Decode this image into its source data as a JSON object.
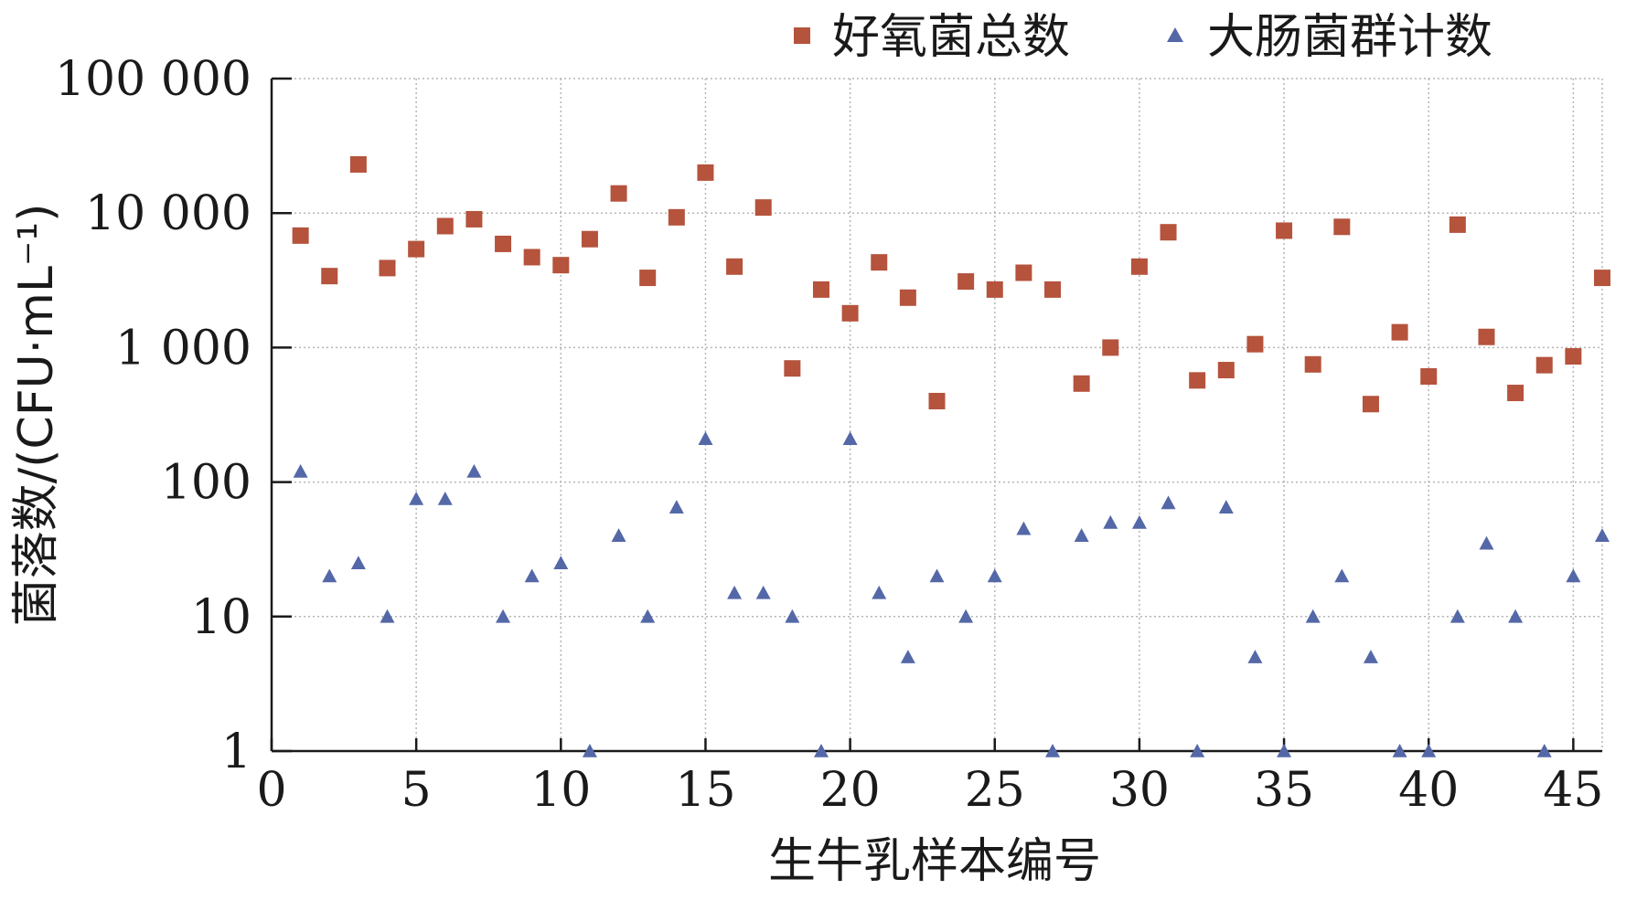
{
  "chart_data": {
    "type": "scatter",
    "title": "",
    "xlabel": "生牛乳样本编号",
    "ylabel": "菌落数/(CFU·mL⁻¹)",
    "xlim": [
      0,
      46
    ],
    "ylim": [
      1,
      100000
    ],
    "yscale": "log",
    "grid": true,
    "legend_position": "top-right",
    "x_ticks": [
      {
        "value": 0,
        "label": "0"
      },
      {
        "value": 5,
        "label": "5"
      },
      {
        "value": 10,
        "label": "10"
      },
      {
        "value": 15,
        "label": "15"
      },
      {
        "value": 20,
        "label": "20"
      },
      {
        "value": 25,
        "label": "25"
      },
      {
        "value": 30,
        "label": "30"
      },
      {
        "value": 35,
        "label": "35"
      },
      {
        "value": 40,
        "label": "40"
      },
      {
        "value": 45,
        "label": "45"
      }
    ],
    "y_ticks": [
      {
        "value": 1,
        "label": "1"
      },
      {
        "value": 10,
        "label": "10"
      },
      {
        "value": 100,
        "label": "100"
      },
      {
        "value": 1000,
        "label": "1 000"
      },
      {
        "value": 10000,
        "label": "10 000"
      },
      {
        "value": 100000,
        "label": "100 000"
      }
    ],
    "series": [
      {
        "name": "好氧菌总数",
        "marker": "square",
        "color": "#B5533C",
        "x": [
          1,
          2,
          3,
          4,
          5,
          6,
          7,
          8,
          9,
          10,
          11,
          12,
          13,
          14,
          15,
          16,
          17,
          18,
          19,
          20,
          21,
          22,
          23,
          24,
          25,
          26,
          27,
          28,
          29,
          30,
          31,
          32,
          33,
          34,
          35,
          36,
          37,
          38,
          39,
          40,
          41,
          42,
          43,
          44,
          45,
          46
        ],
        "y": [
          6800,
          3400,
          23000,
          3900,
          5400,
          8000,
          9000,
          5900,
          4700,
          4100,
          6400,
          14000,
          3300,
          9300,
          20000,
          4000,
          11000,
          700,
          2700,
          1800,
          4300,
          2350,
          400,
          3100,
          2700,
          3600,
          2700,
          540,
          1000,
          4000,
          7200,
          570,
          680,
          1060,
          7400,
          750,
          7900,
          380,
          1300,
          610,
          8200,
          1200,
          460,
          740,
          860,
          3300
        ]
      },
      {
        "name": "大肠菌群计数",
        "marker": "triangle",
        "color": "#5468A8",
        "x": [
          1,
          2,
          3,
          4,
          5,
          6,
          7,
          8,
          9,
          10,
          11,
          12,
          13,
          14,
          15,
          16,
          17,
          18,
          19,
          20,
          21,
          22,
          23,
          24,
          25,
          26,
          27,
          28,
          29,
          30,
          31,
          32,
          33,
          34,
          35,
          36,
          37,
          38,
          39,
          40,
          41,
          42,
          43,
          44,
          45,
          46
        ],
        "y": [
          120,
          20,
          25,
          10,
          75,
          75,
          120,
          10,
          20,
          25,
          1,
          40,
          10,
          65,
          210,
          15,
          15,
          10,
          1,
          210,
          15,
          5,
          20,
          10,
          20,
          45,
          1,
          40,
          50,
          50,
          70,
          1,
          65,
          5,
          1,
          10,
          20,
          5,
          1,
          1,
          10,
          35,
          10,
          1,
          20,
          40
        ]
      }
    ]
  }
}
